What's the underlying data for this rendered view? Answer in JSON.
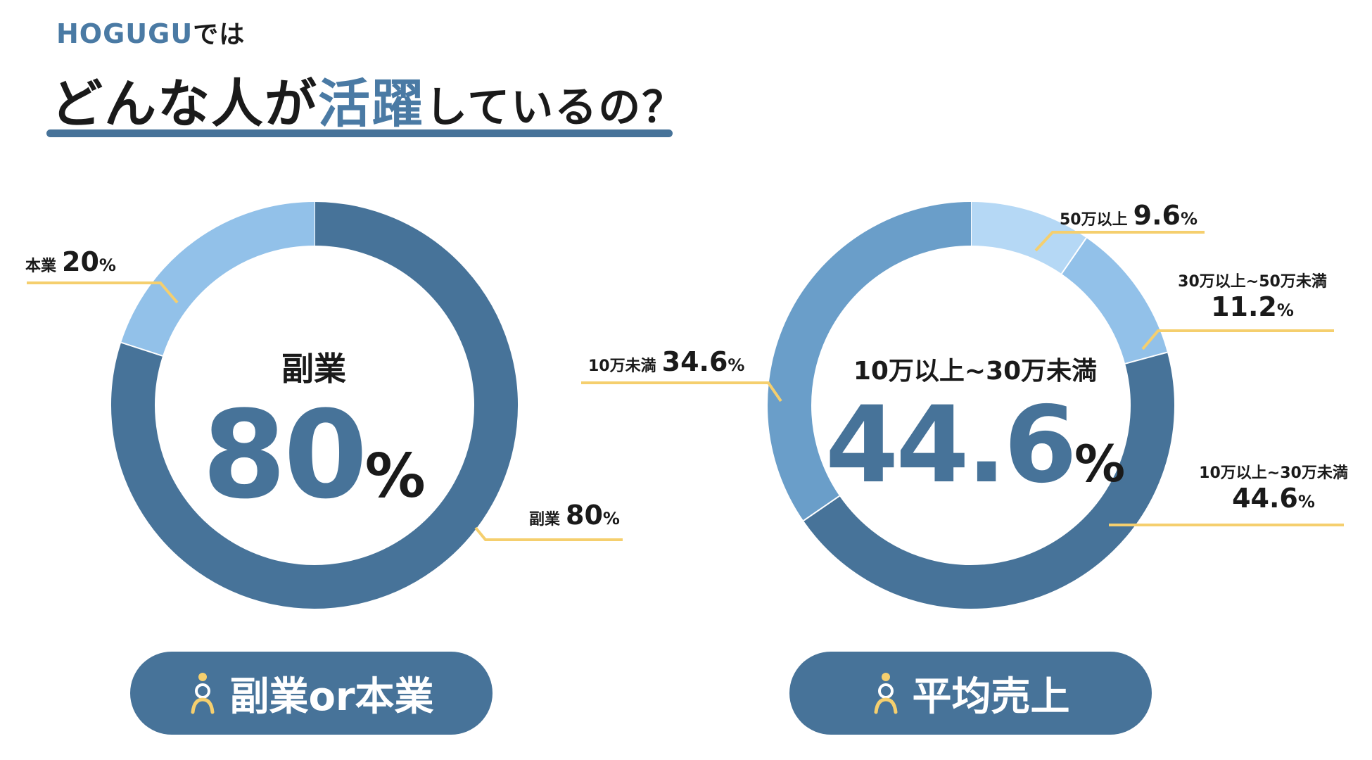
{
  "header": {
    "brand": "HOGUGU",
    "brand_suffix": "では",
    "title_part1": "どんな人が",
    "title_highlight": "活躍",
    "title_part2": "しているの？"
  },
  "colors": {
    "primary": "#477399",
    "medium": "#6a9ec9",
    "light": "#92c1e9",
    "lightest": "#b5d8f5",
    "accent_line": "#f5cf6e"
  },
  "icon": "person-icon",
  "chart_data": [
    {
      "type": "donut",
      "title": "副業or本業",
      "center_label": "副業",
      "center_value": "80",
      "unit": "%",
      "slices": [
        {
          "name": "副業",
          "value": 80,
          "display": "80",
          "color": "#477399"
        },
        {
          "name": "本業",
          "value": 20,
          "display": "20",
          "color": "#92c1e9"
        }
      ]
    },
    {
      "type": "donut",
      "title": "平均売上",
      "center_label": "10万以上~30万未満",
      "center_value": "44.6",
      "unit": "%",
      "slices": [
        {
          "name": "50万以上",
          "value": 9.6,
          "display": "9.6",
          "color": "#b5d8f5"
        },
        {
          "name": "30万以上~50万未満",
          "value": 11.2,
          "display": "11.2",
          "color": "#92c1e9"
        },
        {
          "name": "10万以上~30万未満",
          "value": 44.6,
          "display": "44.6",
          "color": "#477399"
        },
        {
          "name": "10万未満",
          "value": 34.6,
          "display": "34.6",
          "color": "#6a9ec9"
        }
      ]
    }
  ]
}
